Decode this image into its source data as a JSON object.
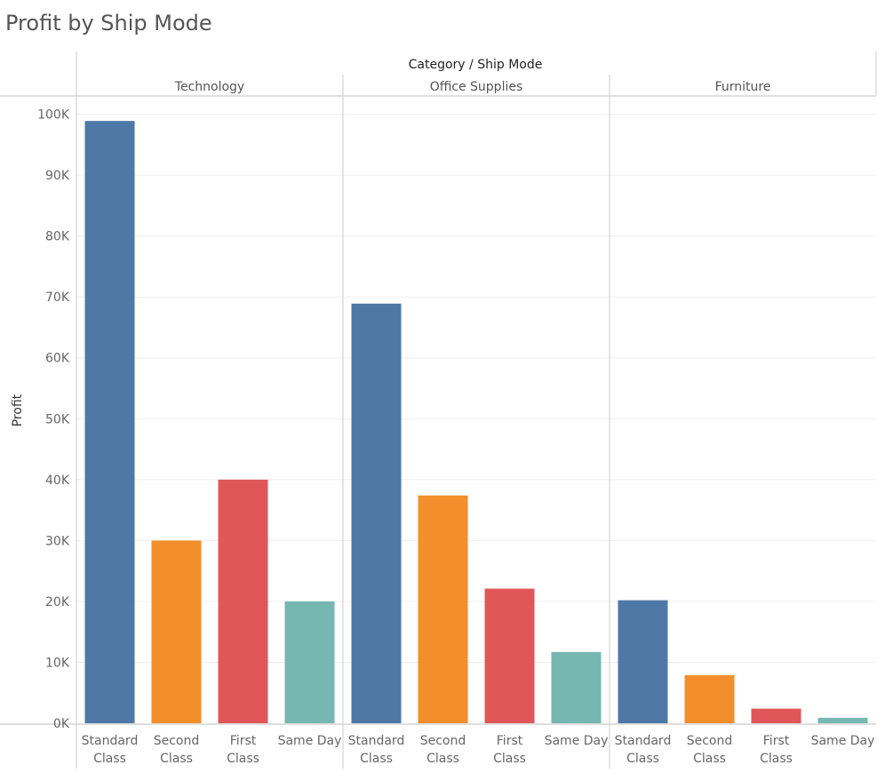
{
  "title": "Profit by Ship Mode",
  "chart_data": {
    "type": "bar",
    "header": "Category / Ship Mode",
    "ylabel": "Profit",
    "ylim": [
      0,
      103000
    ],
    "yticks": [
      0,
      10000,
      20000,
      30000,
      40000,
      50000,
      60000,
      70000,
      80000,
      90000,
      100000
    ],
    "ytick_labels": [
      "0K",
      "10K",
      "20K",
      "30K",
      "40K",
      "50K",
      "60K",
      "70K",
      "80K",
      "90K",
      "100K"
    ],
    "ship_modes": [
      {
        "line1": "Standard",
        "line2": "Class",
        "color": "#4e79a7"
      },
      {
        "line1": "Second",
        "line2": "Class",
        "color": "#f28e2b"
      },
      {
        "line1": "First",
        "line2": "Class",
        "color": "#e15759"
      },
      {
        "line1": "Same Day",
        "line2": "",
        "color": "#76b7b2"
      }
    ],
    "panels": [
      {
        "category": "Technology",
        "values": [
          98900,
          30000,
          40000,
          20000
        ]
      },
      {
        "category": "Office Supplies",
        "values": [
          68900,
          37400,
          22100,
          11700
        ]
      },
      {
        "category": "Furniture",
        "values": [
          20200,
          7900,
          2400,
          900
        ]
      }
    ],
    "grid": true
  }
}
